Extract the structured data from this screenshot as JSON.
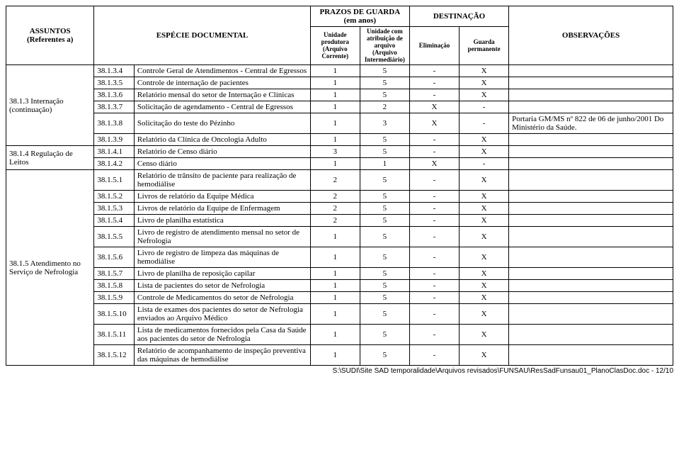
{
  "header": {
    "subject": "ASSUNTOS\n(Referentes a)",
    "docType": "ESPÉCIE DOCUMENTAL",
    "retention": "PRAZOS DE GUARDA\n(em anos)",
    "producer": "Unidade produtora (Arquivo Corrente)",
    "intermediate": "Unidade com atribuição de arquivo (Arquivo Intermediário)",
    "destination": "DESTINAÇÃO",
    "elimination": "Eliminação",
    "permanent": "Guarda permanente",
    "obs": "OBSERVAÇÕES"
  },
  "subjects": {
    "s1": "38.1.3 Internação (continuação)",
    "s2": "38.1.4 Regulação de Leitos",
    "s3": "38.1.5 Atendimento no Serviço de Nefrologia"
  },
  "rows": [
    {
      "code": "38.1.3.4",
      "doc": "Controle Geral de Atendimentos - Central de Egressos",
      "p": "1",
      "i": "5",
      "e": "-",
      "g": "X",
      "obs": ""
    },
    {
      "code": "38.1.3.5",
      "doc": "Controle de internação de pacientes",
      "p": "1",
      "i": "5",
      "e": "-",
      "g": "X",
      "obs": ""
    },
    {
      "code": "38.1.3.6",
      "doc": "Relatório mensal do setor de Internação e Clínicas",
      "p": "1",
      "i": "5",
      "e": "-",
      "g": "X",
      "obs": ""
    },
    {
      "code": "38.1.3.7",
      "doc": "Solicitação de agendamento - Central de Egressos",
      "p": "1",
      "i": "2",
      "e": "X",
      "g": "-",
      "obs": ""
    },
    {
      "code": "38.1.3.8",
      "doc": "Solicitação do teste do Pézinho",
      "p": "1",
      "i": "3",
      "e": "X",
      "g": "-",
      "obs": "Portaria GM/MS nº 822 de 06 de junho/2001 Do Ministério da Saúde."
    },
    {
      "code": "38.1.3.9",
      "doc": "Relatório da Clínica de Oncologia Adulto",
      "p": "1",
      "i": "5",
      "e": "-",
      "g": "X",
      "obs": ""
    },
    {
      "code": "38.1.4.1",
      "doc": "Relatório de Censo diário",
      "p": "3",
      "i": "5",
      "e": "-",
      "g": "X",
      "obs": ""
    },
    {
      "code": "38.1.4.2",
      "doc": "Censo diário",
      "p": "1",
      "i": "1",
      "e": "X",
      "g": "-",
      "obs": ""
    },
    {
      "code": "38.1.5.1",
      "doc": "Relatório de trânsito de paciente para realização de hemodiálise",
      "p": "2",
      "i": "5",
      "e": "-",
      "g": "X",
      "obs": ""
    },
    {
      "code": "38.1.5.2",
      "doc": "Livros de relatório da Equipe Médica",
      "p": "2",
      "i": "5",
      "e": "-",
      "g": "X",
      "obs": ""
    },
    {
      "code": "38.1.5.3",
      "doc": "Livros de relatório da Equipe de Enfermagem",
      "p": "2",
      "i": "5",
      "e": "-",
      "g": "X",
      "obs": ""
    },
    {
      "code": "38.1.5.4",
      "doc": "Livro de planilha estatística",
      "p": "2",
      "i": "5",
      "e": "-",
      "g": "X",
      "obs": ""
    },
    {
      "code": "38.1.5.5",
      "doc": "Livro de registro de atendimento mensal no setor de Nefrologia",
      "p": "1",
      "i": "5",
      "e": "-",
      "g": "X",
      "obs": ""
    },
    {
      "code": "38.1.5.6",
      "doc": "Livro de registro de limpeza das máquinas de hemodiálise",
      "p": "1",
      "i": "5",
      "e": "-",
      "g": "X",
      "obs": ""
    },
    {
      "code": "38.1.5.7",
      "doc": "Livro de planilha de reposição capilar",
      "p": "1",
      "i": "5",
      "e": "-",
      "g": "X",
      "obs": ""
    },
    {
      "code": "38.1.5.8",
      "doc": "Lista de pacientes do setor de Nefrologia",
      "p": "1",
      "i": "5",
      "e": "-",
      "g": "X",
      "obs": ""
    },
    {
      "code": "38.1.5.9",
      "doc": "Controle de Medicamentos do setor de Nefrologia",
      "p": "1",
      "i": "5",
      "e": "-",
      "g": "X",
      "obs": ""
    },
    {
      "code": "38.1.5.10",
      "doc": "Lista de exames dos pacientes do setor de Nefrologia enviados ao Arquivo Médico",
      "p": "1",
      "i": "5",
      "e": "-",
      "g": "X",
      "obs": ""
    },
    {
      "code": "38.1.5.11",
      "doc": "Lista de medicamentos fornecidos pela Casa da Saúde aos pacientes do setor de Nefrologia",
      "p": "1",
      "i": "5",
      "e": "-",
      "g": "X",
      "obs": ""
    },
    {
      "code": "38.1.5.12",
      "doc": "Relatório de acompanhamento de inspeção preventiva das máquinas de hemodiálise",
      "p": "1",
      "i": "5",
      "e": "-",
      "g": "X",
      "obs": ""
    }
  ],
  "footer": "S:\\SUDI\\Site SAD temporalidade\\Arquivos revisados\\FUNSAU\\ResSadFunsau01_PlanoClasDoc.doc - 12/10"
}
